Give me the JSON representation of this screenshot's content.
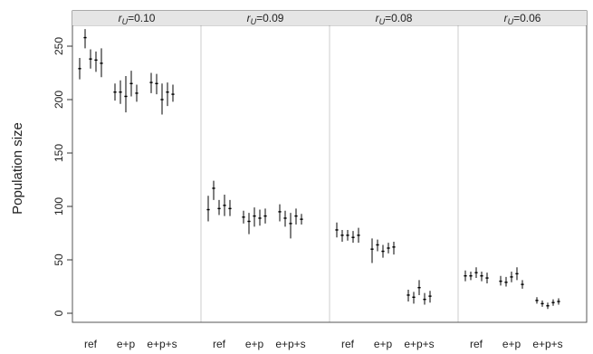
{
  "chart_data": {
    "type": "errorbar",
    "ylabel": "Population size",
    "ylim": [
      -12,
      275
    ],
    "yticks": [
      0,
      50,
      100,
      150,
      200,
      250
    ],
    "grid": false,
    "groups": [
      "ref",
      "e+p",
      "e+p+s"
    ],
    "panels": [
      {
        "title_symbol": "r",
        "title_subscript": "U",
        "title_value": "=0.10",
        "groups": [
          {
            "label": "ref",
            "replicates": [
              {
                "mean": 229,
                "low": 219,
                "high": 239
              },
              {
                "mean": 258,
                "low": 248,
                "high": 266
              },
              {
                "mean": 238,
                "low": 229,
                "high": 247
              },
              {
                "mean": 237,
                "low": 226,
                "high": 245
              },
              {
                "mean": 234,
                "low": 221,
                "high": 248
              }
            ]
          },
          {
            "label": "e+p",
            "replicates": [
              {
                "mean": 207,
                "low": 199,
                "high": 215
              },
              {
                "mean": 207,
                "low": 196,
                "high": 218
              },
              {
                "mean": 203,
                "low": 188,
                "high": 222
              },
              {
                "mean": 215,
                "low": 203,
                "high": 227
              },
              {
                "mean": 206,
                "low": 198,
                "high": 214
              }
            ]
          },
          {
            "label": "e+p+s",
            "replicates": [
              {
                "mean": 216,
                "low": 206,
                "high": 225
              },
              {
                "mean": 215,
                "low": 205,
                "high": 224
              },
              {
                "mean": 200,
                "low": 186,
                "high": 215
              },
              {
                "mean": 207,
                "low": 194,
                "high": 216
              },
              {
                "mean": 205,
                "low": 198,
                "high": 214
              }
            ]
          }
        ]
      },
      {
        "title_symbol": "r",
        "title_subscript": "U",
        "title_value": "=0.09",
        "groups": [
          {
            "label": "ref",
            "replicates": [
              {
                "mean": 97,
                "low": 86,
                "high": 110
              },
              {
                "mean": 117,
                "low": 106,
                "high": 124
              },
              {
                "mean": 98,
                "low": 92,
                "high": 106
              },
              {
                "mean": 101,
                "low": 91,
                "high": 111
              },
              {
                "mean": 98,
                "low": 91,
                "high": 106
              }
            ]
          },
          {
            "label": "e+p",
            "replicates": [
              {
                "mean": 90,
                "low": 84,
                "high": 96
              },
              {
                "mean": 86,
                "low": 74,
                "high": 94
              },
              {
                "mean": 91,
                "low": 81,
                "high": 99
              },
              {
                "mean": 89,
                "low": 82,
                "high": 97
              },
              {
                "mean": 91,
                "low": 84,
                "high": 98
              }
            ]
          },
          {
            "label": "e+p+s",
            "replicates": [
              {
                "mean": 95,
                "low": 86,
                "high": 102
              },
              {
                "mean": 89,
                "low": 81,
                "high": 96
              },
              {
                "mean": 84,
                "low": 70,
                "high": 94
              },
              {
                "mean": 91,
                "low": 83,
                "high": 98
              },
              {
                "mean": 88,
                "low": 83,
                "high": 93
              }
            ]
          }
        ]
      },
      {
        "title_symbol": "r",
        "title_subscript": "U",
        "title_value": "=0.08",
        "groups": [
          {
            "label": "ref",
            "replicates": [
              {
                "mean": 78,
                "low": 71,
                "high": 85
              },
              {
                "mean": 73,
                "low": 67,
                "high": 78
              },
              {
                "mean": 73,
                "low": 68,
                "high": 78
              },
              {
                "mean": 71,
                "low": 66,
                "high": 77
              },
              {
                "mean": 73,
                "low": 66,
                "high": 80
              }
            ]
          },
          {
            "label": "e+p",
            "replicates": [
              {
                "mean": 60,
                "low": 47,
                "high": 70
              },
              {
                "mean": 64,
                "low": 58,
                "high": 69
              },
              {
                "mean": 58,
                "low": 52,
                "high": 64
              },
              {
                "mean": 61,
                "low": 56,
                "high": 66
              },
              {
                "mean": 62,
                "low": 55,
                "high": 67
              }
            ]
          },
          {
            "label": "e+p+s",
            "replicates": [
              {
                "mean": 17,
                "low": 11,
                "high": 22
              },
              {
                "mean": 15,
                "low": 9,
                "high": 20
              },
              {
                "mean": 24,
                "low": 17,
                "high": 31
              },
              {
                "mean": 13,
                "low": 8,
                "high": 19
              },
              {
                "mean": 16,
                "low": 10,
                "high": 21
              }
            ]
          }
        ]
      },
      {
        "title_symbol": "r",
        "title_subscript": "U",
        "title_value": "=0.06",
        "groups": [
          {
            "label": "ref",
            "replicates": [
              {
                "mean": 35,
                "low": 30,
                "high": 40
              },
              {
                "mean": 35,
                "low": 31,
                "high": 39
              },
              {
                "mean": 38,
                "low": 33,
                "high": 43
              },
              {
                "mean": 35,
                "low": 30,
                "high": 39
              },
              {
                "mean": 33,
                "low": 28,
                "high": 38
              }
            ]
          },
          {
            "label": "e+p",
            "replicates": [
              {
                "mean": 30,
                "low": 26,
                "high": 35
              },
              {
                "mean": 29,
                "low": 25,
                "high": 34
              },
              {
                "mean": 34,
                "low": 29,
                "high": 39
              },
              {
                "mean": 37,
                "low": 31,
                "high": 43
              },
              {
                "mean": 27,
                "low": 23,
                "high": 31
              }
            ]
          },
          {
            "label": "e+p+s",
            "replicates": [
              {
                "mean": 12,
                "low": 9,
                "high": 15
              },
              {
                "mean": 9,
                "low": 6,
                "high": 12
              },
              {
                "mean": 7,
                "low": 4,
                "high": 10
              },
              {
                "mean": 10,
                "low": 7,
                "high": 13
              },
              {
                "mean": 11,
                "low": 8,
                "high": 14
              }
            ]
          }
        ]
      }
    ]
  }
}
